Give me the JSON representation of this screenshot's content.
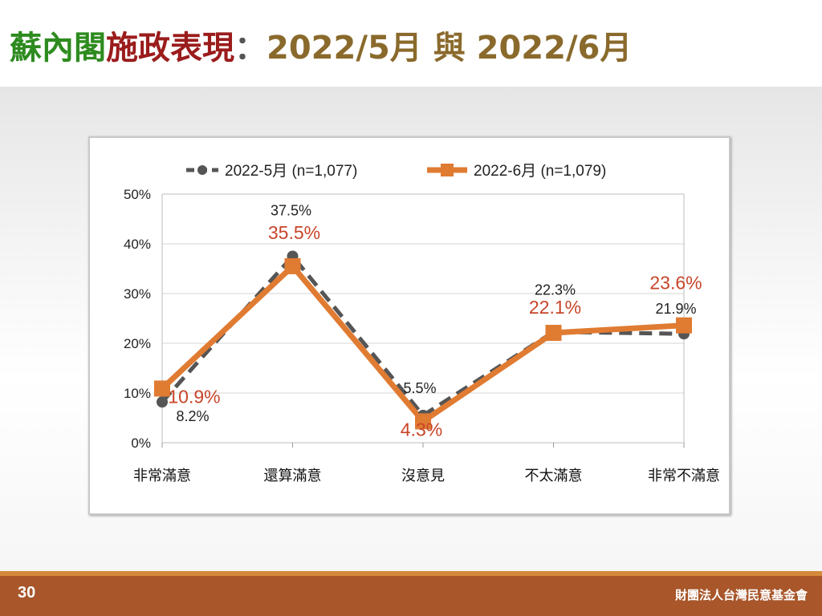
{
  "slide": {
    "title_part1": "蘇內閣",
    "title_part2": "施政表現",
    "title_colon": "：",
    "title_part3": "2022/5月 與 2022/6月",
    "page_number": "30",
    "organization": "財團法人台灣民意基金會"
  },
  "colors": {
    "series_may": "#555555",
    "series_june": "#e07b32",
    "june_label": "#c8452a",
    "footer": "#a8562a"
  },
  "chart_data": {
    "type": "line",
    "categories": [
      "非常滿意",
      "還算滿意",
      "沒意見",
      "不太滿意",
      "非常不滿意"
    ],
    "series": [
      {
        "name": "2022-5月  (n=1,077)",
        "values": [
          8.2,
          37.5,
          5.5,
          22.3,
          21.9
        ],
        "labels": [
          "8.2%",
          "37.5%",
          "5.5%",
          "22.3%",
          "21.9%"
        ],
        "marker": "circle",
        "line_style": "dashed",
        "color": "#555555"
      },
      {
        "name": "2022-6月  (n=1,079)",
        "values": [
          10.9,
          35.5,
          4.3,
          22.1,
          23.6
        ],
        "labels": [
          "10.9%",
          "35.5%",
          "4.3%",
          "22.1%",
          "23.6%"
        ],
        "marker": "square",
        "line_style": "solid",
        "color": "#e07b32"
      }
    ],
    "y_ticks": [
      "0%",
      "10%",
      "20%",
      "30%",
      "40%",
      "50%"
    ],
    "ylim": [
      0,
      50
    ],
    "grid": true,
    "legend_position": "top-center"
  }
}
